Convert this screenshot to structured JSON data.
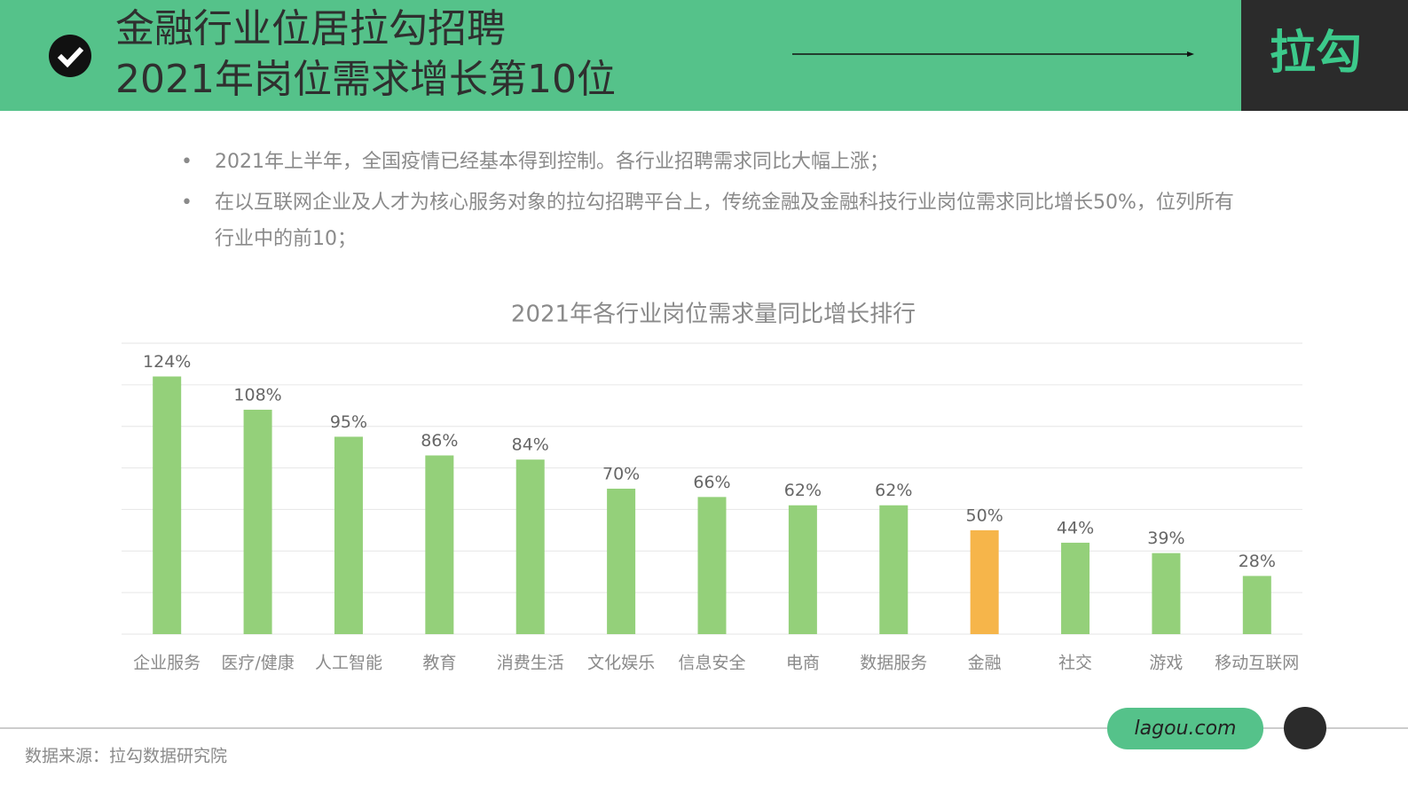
{
  "header": {
    "title_lines": [
      "金融行业位居拉勾招聘",
      "2021年岗位需求增长第10位"
    ],
    "brand": "拉勾"
  },
  "bullets": [
    "2021年上半年，全国疫情已经基本得到控制。各行业招聘需求同比大幅上涨；",
    "在以互联网企业及人才为核心服务对象的拉勾招聘平台上，传统金融及金融科技行业岗位需求同比增长50%，位列所有行业中的前10；"
  ],
  "chart_data": {
    "type": "bar",
    "title": "2021年各行业岗位需求量同比增长排行",
    "categories": [
      "企业服务",
      "医疗/健康",
      "人工智能",
      "教育",
      "消费生活",
      "文化娱乐",
      "信息安全",
      "电商",
      "数据服务",
      "金融",
      "社交",
      "游戏",
      "移动互联网"
    ],
    "values": [
      124,
      108,
      95,
      86,
      84,
      70,
      66,
      62,
      62,
      50,
      44,
      39,
      28
    ],
    "value_labels": [
      "124%",
      "108%",
      "95%",
      "86%",
      "84%",
      "70%",
      "66%",
      "62%",
      "62%",
      "50%",
      "44%",
      "39%",
      "28%"
    ],
    "colors": [
      "#94d07a",
      "#94d07a",
      "#94d07a",
      "#94d07a",
      "#94d07a",
      "#94d07a",
      "#94d07a",
      "#94d07a",
      "#94d07a",
      "#f6b54a",
      "#94d07a",
      "#94d07a",
      "#94d07a"
    ],
    "ylim": [
      0,
      140
    ],
    "yticks": [
      0,
      20,
      40,
      60,
      80,
      100,
      120,
      140
    ],
    "grid": true
  },
  "footer": {
    "site": "lagou.com",
    "source": "数据来源：拉勾数据研究院"
  }
}
